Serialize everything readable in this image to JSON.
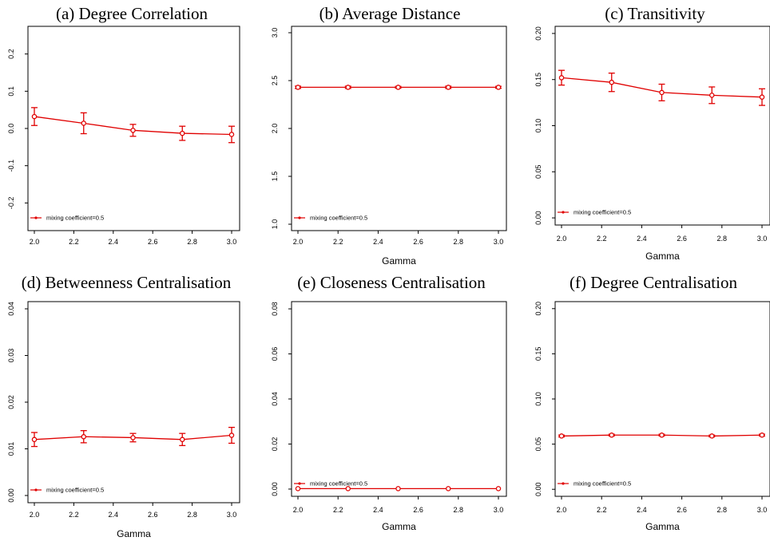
{
  "colors": {
    "series": "#e00000",
    "axis": "#000000",
    "background": "#ffffff"
  },
  "chart_data": [
    {
      "type": "line",
      "title": "(a) Degree Correlation",
      "xlabel": "",
      "ylabel": "",
      "xlim": [
        2.0,
        3.0
      ],
      "ylim": [
        -0.27,
        0.27
      ],
      "xticks": [
        "2.0",
        "2.2",
        "2.4",
        "2.6",
        "2.8",
        "3.0"
      ],
      "yticks": [
        "-0.2",
        "-0.1",
        "0.0",
        "0.1",
        "0.2"
      ],
      "series": [
        {
          "name": "mixing coefficient=0.5",
          "x": [
            2.0,
            2.25,
            2.5,
            2.75,
            3.0
          ],
          "y": [
            0.032,
            0.014,
            -0.005,
            -0.013,
            -0.016
          ],
          "err": [
            0.024,
            0.028,
            0.016,
            0.019,
            0.022
          ]
        }
      ],
      "legend": "bottom-left",
      "grid": false
    },
    {
      "type": "line",
      "title": "(b) Average Distance",
      "xlabel": "Gamma",
      "ylabel": "",
      "xlim": [
        2.0,
        3.0
      ],
      "ylim": [
        0.95,
        3.05
      ],
      "xticks": [
        "2.0",
        "2.2",
        "2.4",
        "2.6",
        "2.8",
        "3.0"
      ],
      "yticks": [
        "1.0",
        "1.5",
        "2.0",
        "2.5",
        "3.0"
      ],
      "series": [
        {
          "name": "mixing coefficient=0.5",
          "x": [
            2.0,
            2.25,
            2.5,
            2.75,
            3.0
          ],
          "y": [
            2.43,
            2.43,
            2.43,
            2.43,
            2.43
          ],
          "err": [
            0.012,
            0.012,
            0.01,
            0.012,
            0.01
          ]
        }
      ],
      "legend": "bottom-left",
      "grid": false
    },
    {
      "type": "line",
      "title": "(c) Transitivity",
      "xlabel": "Gamma",
      "ylabel": "",
      "xlim": [
        2.0,
        3.0
      ],
      "ylim": [
        -0.006,
        0.206
      ],
      "xticks": [
        "2.0",
        "2.2",
        "2.4",
        "2.6",
        "2.8",
        "3.0"
      ],
      "yticks": [
        "0.00",
        "0.05",
        "0.10",
        "0.15",
        "0.20"
      ],
      "series": [
        {
          "name": "mixing coefficient=0.5",
          "x": [
            2.0,
            2.25,
            2.5,
            2.75,
            3.0
          ],
          "y": [
            0.152,
            0.147,
            0.136,
            0.133,
            0.131
          ],
          "err": [
            0.008,
            0.01,
            0.009,
            0.009,
            0.009
          ]
        }
      ],
      "legend": "bottom-left",
      "grid": false
    },
    {
      "type": "line",
      "title": "(d) Betweenness Centralisation",
      "xlabel": "Gamma",
      "ylabel": "",
      "xlim": [
        2.0,
        3.0
      ],
      "ylim": [
        -0.0012,
        0.0412
      ],
      "xticks": [
        "2.0",
        "2.2",
        "2.4",
        "2.6",
        "2.8",
        "3.0"
      ],
      "yticks": [
        "0.00",
        "0.01",
        "0.02",
        "0.03",
        "0.04"
      ],
      "series": [
        {
          "name": "mixing coefficient=0.5",
          "x": [
            2.0,
            2.25,
            2.5,
            2.75,
            3.0
          ],
          "y": [
            0.012,
            0.0126,
            0.0124,
            0.012,
            0.0129
          ],
          "err": [
            0.0015,
            0.0013,
            0.0009,
            0.0013,
            0.0017
          ]
        }
      ],
      "legend": "bottom-left",
      "grid": false
    },
    {
      "type": "line",
      "title": "(e) Closeness Centralisation",
      "xlabel": "Gamma",
      "ylabel": "",
      "xlim": [
        2.0,
        3.0
      ],
      "ylim": [
        -0.0025,
        0.0825
      ],
      "xticks": [
        "2.0",
        "2.2",
        "2.4",
        "2.6",
        "2.8",
        "3.0"
      ],
      "yticks": [
        "0.00",
        "0.02",
        "0.04",
        "0.06",
        "0.08"
      ],
      "series": [
        {
          "name": "mixing coefficient=0.5",
          "x": [
            2.0,
            2.25,
            2.5,
            2.75,
            3.0
          ],
          "y": [
            0.0002,
            0.0002,
            0.0002,
            0.0002,
            0.0002
          ],
          "err": [
            0.0001,
            0.0001,
            0.0001,
            0.0001,
            0.0001
          ]
        }
      ],
      "legend": "bottom-left",
      "grid": false
    },
    {
      "type": "line",
      "title": "(f)  Degree Centralisation",
      "xlabel": "Gamma",
      "ylabel": "",
      "xlim": [
        2.0,
        3.0
      ],
      "ylim": [
        -0.006,
        0.206
      ],
      "xticks": [
        "2.0",
        "2.2",
        "2.4",
        "2.6",
        "2.8",
        "3.0"
      ],
      "yticks": [
        "0.00",
        "0.05",
        "0.10",
        "0.15",
        "0.20"
      ],
      "series": [
        {
          "name": "mixing coefficient=0.5",
          "x": [
            2.0,
            2.25,
            2.5,
            2.75,
            3.0
          ],
          "y": [
            0.059,
            0.06,
            0.06,
            0.059,
            0.06
          ],
          "err": [
            0.001,
            0.001,
            0.001,
            0.001,
            0.001
          ]
        }
      ],
      "legend": "bottom-left",
      "grid": false
    }
  ]
}
